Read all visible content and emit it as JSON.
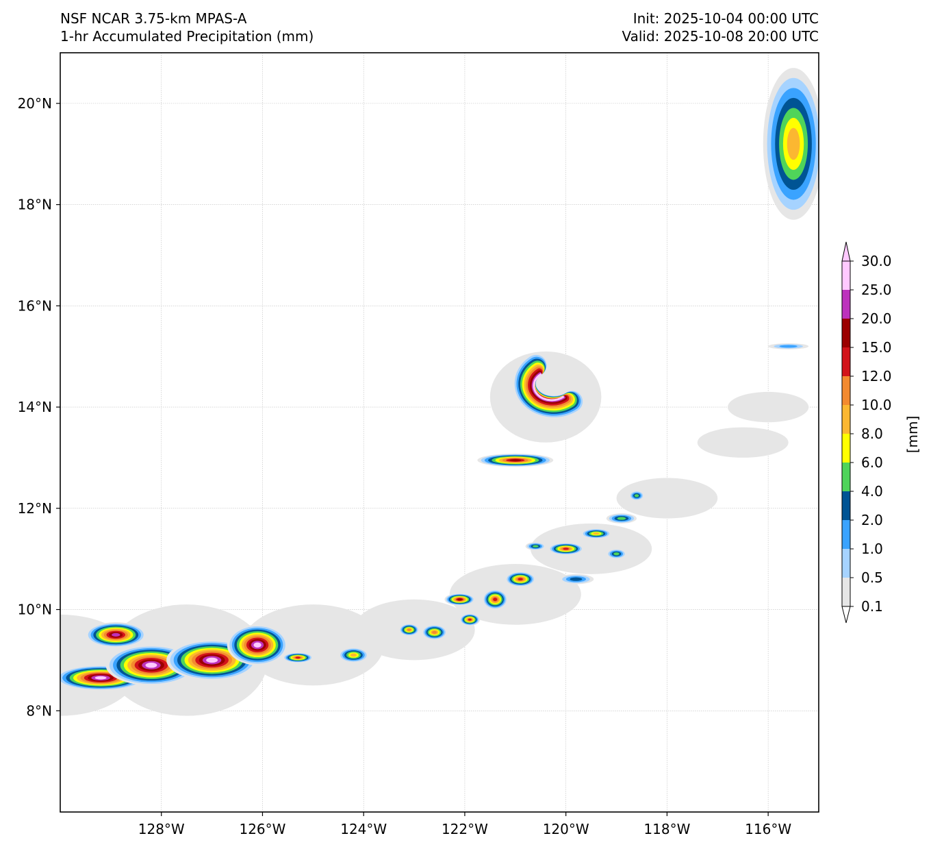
{
  "title": {
    "model": "NSF NCAR 3.75-km MPAS-A",
    "field": "1-hr Accumulated Precipitation (mm)",
    "init": "Init: 2025-10-04 00:00 UTC",
    "valid": "Valid: 2025-10-08 20:00 UTC"
  },
  "map": {
    "lon_range": [
      -130,
      -115
    ],
    "lat_range": [
      6,
      21
    ],
    "lon_ticks": [
      {
        "value": -128,
        "label": "128°W"
      },
      {
        "value": -126,
        "label": "126°W"
      },
      {
        "value": -124,
        "label": "124°W"
      },
      {
        "value": -122,
        "label": "122°W"
      },
      {
        "value": -120,
        "label": "120°W"
      },
      {
        "value": -118,
        "label": "118°W"
      },
      {
        "value": -116,
        "label": "116°W"
      }
    ],
    "lat_ticks": [
      {
        "value": 8,
        "label": "8°N"
      },
      {
        "value": 10,
        "label": "10°N"
      },
      {
        "value": 12,
        "label": "12°N"
      },
      {
        "value": 14,
        "label": "14°N"
      },
      {
        "value": 16,
        "label": "16°N"
      },
      {
        "value": 18,
        "label": "18°N"
      },
      {
        "value": 20,
        "label": "20°N"
      }
    ],
    "gridlines": true
  },
  "colorbar": {
    "unit_label": "[mm]",
    "levels": [
      {
        "label": "0.1",
        "color": "#e6e6e6"
      },
      {
        "label": "0.5",
        "color": "#a6d3ff"
      },
      {
        "label": "1.0",
        "color": "#3aa3ff"
      },
      {
        "label": "2.0",
        "color": "#005494"
      },
      {
        "label": "4.0",
        "color": "#4fd45a"
      },
      {
        "label": "6.0",
        "color": "#ffff00"
      },
      {
        "label": "8.0",
        "color": "#fbb731"
      },
      {
        "label": "10.0",
        "color": "#f38a2f"
      },
      {
        "label": "12.0",
        "color": "#d2131a"
      },
      {
        "label": "15.0",
        "color": "#9b0000"
      },
      {
        "label": "20.0",
        "color": "#bd32bd"
      },
      {
        "label": "25.0",
        "color": "#ffc9ff"
      },
      {
        "label": "30.0",
        "color": ""
      }
    ]
  },
  "precip_features": [
    {
      "lon": -120.4,
      "lat": 14.2,
      "rx": 1.1,
      "ry": 0.9,
      "max_level": 11,
      "kind": "ring"
    },
    {
      "lon": -121.0,
      "lat": 12.95,
      "rx": 0.75,
      "ry": 0.13,
      "max_level": 9
    },
    {
      "lon": -115.5,
      "lat": 19.2,
      "rx": 0.6,
      "ry": 1.5,
      "max_level": 6
    },
    {
      "lon": -129.2,
      "lat": 8.65,
      "rx": 0.9,
      "ry": 0.25,
      "max_level": 11
    },
    {
      "lon": -128.2,
      "lat": 8.9,
      "rx": 0.9,
      "ry": 0.4,
      "max_level": 11
    },
    {
      "lon": -127.0,
      "lat": 9.0,
      "rx": 0.9,
      "ry": 0.4,
      "max_level": 11
    },
    {
      "lon": -126.1,
      "lat": 9.3,
      "rx": 0.6,
      "ry": 0.4,
      "max_level": 11
    },
    {
      "lon": -128.9,
      "lat": 9.5,
      "rx": 0.6,
      "ry": 0.25,
      "max_level": 10
    },
    {
      "lon": -125.3,
      "lat": 9.05,
      "rx": 0.3,
      "ry": 0.1,
      "max_level": 8
    },
    {
      "lon": -124.2,
      "lat": 9.1,
      "rx": 0.3,
      "ry": 0.15,
      "max_level": 6
    },
    {
      "lon": -123.1,
      "lat": 9.6,
      "rx": 0.2,
      "ry": 0.12,
      "max_level": 7
    },
    {
      "lon": -122.6,
      "lat": 9.55,
      "rx": 0.25,
      "ry": 0.15,
      "max_level": 7
    },
    {
      "lon": -122.1,
      "lat": 10.2,
      "rx": 0.3,
      "ry": 0.12,
      "max_level": 9
    },
    {
      "lon": -121.9,
      "lat": 9.8,
      "rx": 0.2,
      "ry": 0.12,
      "max_level": 8
    },
    {
      "lon": -121.4,
      "lat": 10.2,
      "rx": 0.25,
      "ry": 0.2,
      "max_level": 8
    },
    {
      "lon": -120.9,
      "lat": 10.6,
      "rx": 0.3,
      "ry": 0.15,
      "max_level": 8
    },
    {
      "lon": -120.0,
      "lat": 11.2,
      "rx": 0.35,
      "ry": 0.12,
      "max_level": 8
    },
    {
      "lon": -119.4,
      "lat": 11.5,
      "rx": 0.3,
      "ry": 0.1,
      "max_level": 6
    },
    {
      "lon": -118.9,
      "lat": 11.8,
      "rx": 0.3,
      "ry": 0.1,
      "max_level": 4
    },
    {
      "lon": -118.6,
      "lat": 12.25,
      "rx": 0.15,
      "ry": 0.1,
      "max_level": 4
    },
    {
      "lon": -119.0,
      "lat": 11.1,
      "rx": 0.2,
      "ry": 0.1,
      "max_level": 4
    },
    {
      "lon": -120.6,
      "lat": 11.25,
      "rx": 0.2,
      "ry": 0.08,
      "max_level": 4
    },
    {
      "lon": -119.8,
      "lat": 10.6,
      "rx": 0.35,
      "ry": 0.1,
      "max_level": 3
    },
    {
      "lon": -116.0,
      "lat": 14.0,
      "rx": 0.8,
      "ry": 0.3,
      "max_level": 0
    },
    {
      "lon": -115.6,
      "lat": 15.2,
      "rx": 0.4,
      "ry": 0.06,
      "max_level": 2
    }
  ]
}
